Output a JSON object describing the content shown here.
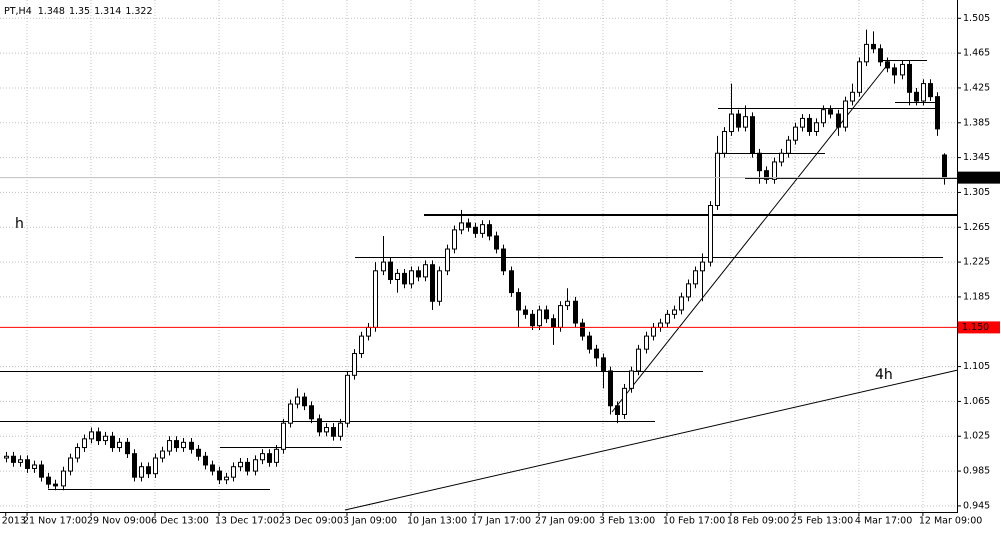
{
  "chart_data": {
    "type": "candlestick",
    "title": "PT,H4",
    "categories": [
      "2013",
      null,
      null,
      "21 Nov 17:00",
      null,
      null,
      null,
      null,
      null,
      null,
      null,
      null,
      "29 Nov 09:00",
      null,
      null,
      null,
      null,
      null,
      null,
      null,
      null,
      "6 Dec 13:00",
      null,
      null,
      null,
      null,
      null,
      null,
      null,
      null,
      "13 Dec 17:00",
      null,
      null,
      null,
      null,
      null,
      null,
      null,
      null,
      "23 Dec 09:00",
      null,
      null,
      null,
      null,
      null,
      null,
      null,
      null,
      "3 Jan 09:00",
      null,
      null,
      null,
      null,
      null,
      null,
      null,
      null,
      "10 Jan 13:00",
      null,
      null,
      null,
      null,
      null,
      null,
      null,
      null,
      "17 Jan 17:00",
      null,
      null,
      null,
      null,
      null,
      null,
      null,
      null,
      "27 Jan 09:00",
      null,
      null,
      null,
      null,
      null,
      null,
      null,
      null,
      "3 Feb 13:00",
      null,
      null,
      null,
      null,
      null,
      null,
      null,
      null,
      "10 Feb 17:00",
      null,
      null,
      null,
      null,
      null,
      null,
      null,
      null,
      "18 Feb 09:00",
      null,
      null,
      null,
      null,
      null,
      null,
      null,
      null,
      "25 Feb 13:00",
      null,
      null,
      null,
      null,
      null,
      null,
      null,
      null,
      "4 Mar 17:00",
      null,
      null,
      null,
      null,
      null,
      null,
      null,
      null,
      "12 Mar 09:00",
      null,
      null,
      null
    ],
    "open": [
      1.0,
      1.002,
      0.995,
      0.998,
      0.988,
      0.992,
      0.978,
      0.97,
      0.968,
      0.985,
      1.0,
      1.012,
      1.022,
      1.03,
      1.02,
      1.025,
      1.012,
      1.018,
      1.005,
      0.978,
      0.99,
      0.982,
      1.0,
      1.008,
      1.02,
      1.012,
      1.018,
      1.01,
      1.002,
      0.992,
      0.985,
      0.975,
      0.978,
      0.99,
      0.995,
      0.985,
      0.998,
      1.005,
      0.995,
      1.01,
      1.04,
      1.062,
      1.07,
      1.06,
      1.045,
      1.03,
      1.035,
      1.025,
      1.04,
      1.095,
      1.12,
      1.14,
      1.15,
      1.215,
      1.225,
      1.205,
      1.212,
      1.2,
      1.215,
      1.208,
      1.222,
      1.18,
      1.215,
      1.24,
      1.262,
      1.27,
      1.265,
      1.258,
      1.268,
      1.255,
      1.24,
      1.215,
      1.19,
      1.17,
      1.165,
      1.152,
      1.17,
      1.16,
      1.15,
      1.175,
      1.18,
      1.155,
      1.14,
      1.125,
      1.115,
      1.1,
      1.06,
      1.05,
      1.08,
      1.1,
      1.125,
      1.14,
      1.15,
      1.155,
      1.165,
      1.17,
      1.185,
      1.2,
      1.215,
      1.225,
      1.29,
      1.35,
      1.375,
      1.395,
      1.38,
      1.392,
      1.35,
      1.33,
      1.32,
      1.34,
      1.35,
      1.365,
      1.38,
      1.39,
      1.375,
      1.385,
      1.4,
      1.395,
      1.38,
      1.41,
      1.42,
      1.455,
      1.475,
      1.47,
      1.455,
      1.448,
      1.44,
      1.452,
      1.42,
      1.41,
      1.43,
      1.415,
      1.348
    ],
    "high": [
      1.007,
      1.007,
      1.003,
      1.003,
      0.997,
      0.997,
      0.983,
      0.975,
      0.99,
      1.005,
      1.017,
      1.027,
      1.035,
      1.035,
      1.03,
      1.03,
      1.023,
      1.023,
      1.01,
      0.995,
      0.995,
      1.005,
      1.013,
      1.025,
      1.025,
      1.023,
      1.023,
      1.015,
      1.007,
      0.997,
      0.99,
      0.983,
      0.995,
      1.0,
      1.0,
      1.003,
      1.01,
      1.01,
      1.015,
      1.045,
      1.067,
      1.08,
      1.075,
      1.065,
      1.05,
      1.04,
      1.04,
      1.045,
      1.1,
      1.125,
      1.145,
      1.155,
      1.225,
      1.255,
      1.23,
      1.217,
      1.217,
      1.22,
      1.22,
      1.227,
      1.227,
      1.22,
      1.245,
      1.267,
      1.285,
      1.275,
      1.27,
      1.273,
      1.273,
      1.26,
      1.245,
      1.22,
      1.195,
      1.175,
      1.17,
      1.175,
      1.175,
      1.165,
      1.18,
      1.195,
      1.185,
      1.16,
      1.145,
      1.13,
      1.12,
      1.105,
      1.065,
      1.085,
      1.105,
      1.13,
      1.145,
      1.155,
      1.16,
      1.17,
      1.175,
      1.19,
      1.205,
      1.22,
      1.235,
      1.295,
      1.37,
      1.38,
      1.43,
      1.4,
      1.405,
      1.397,
      1.355,
      1.335,
      1.345,
      1.355,
      1.37,
      1.385,
      1.395,
      1.395,
      1.39,
      1.405,
      1.405,
      1.4,
      1.415,
      1.43,
      1.46,
      1.492,
      1.49,
      1.475,
      1.46,
      1.453,
      1.457,
      1.457,
      1.425,
      1.435,
      1.435,
      1.42,
      1.35
    ],
    "low": [
      0.995,
      0.99,
      0.99,
      0.983,
      0.983,
      0.973,
      0.965,
      0.963,
      0.963,
      0.98,
      0.995,
      1.007,
      1.017,
      1.015,
      1.015,
      1.007,
      1.007,
      1.0,
      0.973,
      0.973,
      0.977,
      0.977,
      0.995,
      1.003,
      1.007,
      1.007,
      1.005,
      0.997,
      0.987,
      0.98,
      0.97,
      0.97,
      0.973,
      0.985,
      0.98,
      0.98,
      0.993,
      0.99,
      0.99,
      1.005,
      1.035,
      1.057,
      1.055,
      1.04,
      1.025,
      1.025,
      1.02,
      1.02,
      1.035,
      1.09,
      1.115,
      1.135,
      1.145,
      1.21,
      1.2,
      1.19,
      1.195,
      1.195,
      1.203,
      1.203,
      1.17,
      1.175,
      1.21,
      1.235,
      1.257,
      1.26,
      1.253,
      1.253,
      1.25,
      1.235,
      1.21,
      1.185,
      1.15,
      1.16,
      1.147,
      1.147,
      1.155,
      1.13,
      1.145,
      1.17,
      1.15,
      1.135,
      1.12,
      1.105,
      1.08,
      1.05,
      1.04,
      1.045,
      1.075,
      1.095,
      1.12,
      1.135,
      1.145,
      1.15,
      1.16,
      1.165,
      1.18,
      1.195,
      1.18,
      1.22,
      1.285,
      1.345,
      1.37,
      1.375,
      1.375,
      1.345,
      1.315,
      1.315,
      1.315,
      1.335,
      1.345,
      1.36,
      1.375,
      1.37,
      1.37,
      1.38,
      1.39,
      1.37,
      1.375,
      1.405,
      1.415,
      1.45,
      1.465,
      1.45,
      1.443,
      1.43,
      1.435,
      1.405,
      1.405,
      1.405,
      1.41,
      1.37,
      1.314
    ],
    "close": [
      1.002,
      0.995,
      0.998,
      0.988,
      0.992,
      0.978,
      0.97,
      0.968,
      0.985,
      1.0,
      1.012,
      1.022,
      1.03,
      1.02,
      1.025,
      1.012,
      1.018,
      1.005,
      0.978,
      0.99,
      0.982,
      1.0,
      1.008,
      1.02,
      1.012,
      1.018,
      1.01,
      1.002,
      0.992,
      0.985,
      0.975,
      0.978,
      0.99,
      0.995,
      0.985,
      0.998,
      1.005,
      0.995,
      1.01,
      1.04,
      1.062,
      1.07,
      1.06,
      1.045,
      1.03,
      1.035,
      1.025,
      1.04,
      1.095,
      1.12,
      1.14,
      1.15,
      1.215,
      1.225,
      1.205,
      1.212,
      1.2,
      1.215,
      1.208,
      1.222,
      1.18,
      1.215,
      1.24,
      1.262,
      1.27,
      1.265,
      1.258,
      1.268,
      1.255,
      1.24,
      1.215,
      1.19,
      1.17,
      1.165,
      1.152,
      1.17,
      1.16,
      1.15,
      1.175,
      1.18,
      1.155,
      1.14,
      1.125,
      1.115,
      1.1,
      1.06,
      1.05,
      1.08,
      1.1,
      1.125,
      1.14,
      1.15,
      1.155,
      1.165,
      1.17,
      1.185,
      1.2,
      1.215,
      1.225,
      1.29,
      1.35,
      1.375,
      1.395,
      1.38,
      1.392,
      1.35,
      1.33,
      1.32,
      1.34,
      1.35,
      1.365,
      1.38,
      1.39,
      1.375,
      1.385,
      1.4,
      1.395,
      1.38,
      1.41,
      1.42,
      1.455,
      1.475,
      1.47,
      1.455,
      1.448,
      1.44,
      1.452,
      1.42,
      1.41,
      1.43,
      1.415,
      1.378,
      1.322
    ],
    "ylim": [
      0.938,
      1.526
    ],
    "yticks": [
      0.945,
      0.985,
      1.025,
      1.065,
      1.105,
      1.185,
      1.225,
      1.265,
      1.305,
      1.345,
      1.385,
      1.425,
      1.465,
      1.505
    ],
    "grid": true,
    "bull_color": "#ffffff",
    "bear_color": "#000000",
    "levels": [
      {
        "value": 1.15,
        "label": "1.150",
        "color": "#ff0000"
      }
    ],
    "annotations": [
      {
        "text": "h",
        "color": "#ff0000"
      },
      {
        "text": "4h",
        "color": "#ff0000"
      }
    ]
  }
}
